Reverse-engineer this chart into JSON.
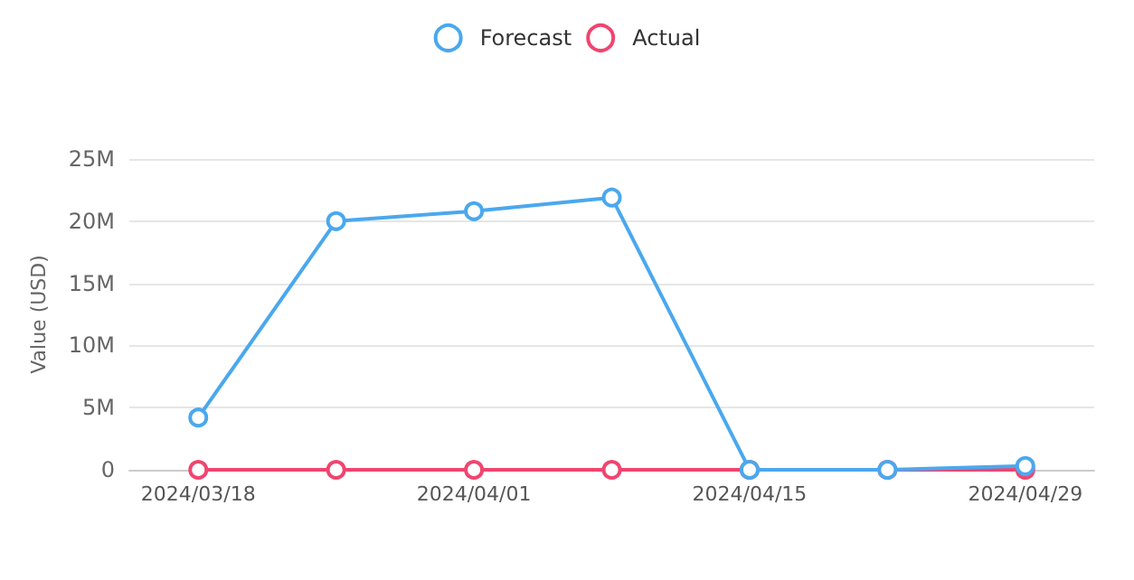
{
  "chart_data": {
    "type": "line",
    "ylabel": "Value (USD)",
    "categories": [
      "2024/03/18",
      null,
      "2024/04/01",
      null,
      "2024/04/15",
      null,
      "2024/04/29"
    ],
    "series": [
      {
        "name": "Forecast",
        "color": "#4aa8ee",
        "values": [
          4200000,
          20000000,
          20800000,
          21900000,
          0,
          0,
          300000
        ]
      },
      {
        "name": "Actual",
        "color": "#f0456f",
        "values": [
          0,
          0,
          0,
          0,
          0,
          0,
          0
        ]
      }
    ],
    "ylim": [
      0,
      25000000
    ],
    "yticks": [
      {
        "value": 0,
        "label": "0"
      },
      {
        "value": 5000000,
        "label": "5M"
      },
      {
        "value": 10000000,
        "label": "10M"
      },
      {
        "value": 15000000,
        "label": "15M"
      },
      {
        "value": 20000000,
        "label": "20M"
      },
      {
        "value": 25000000,
        "label": "25M"
      }
    ],
    "grid": "y",
    "legend": "top",
    "marker": "circle",
    "line_style": "solid"
  }
}
